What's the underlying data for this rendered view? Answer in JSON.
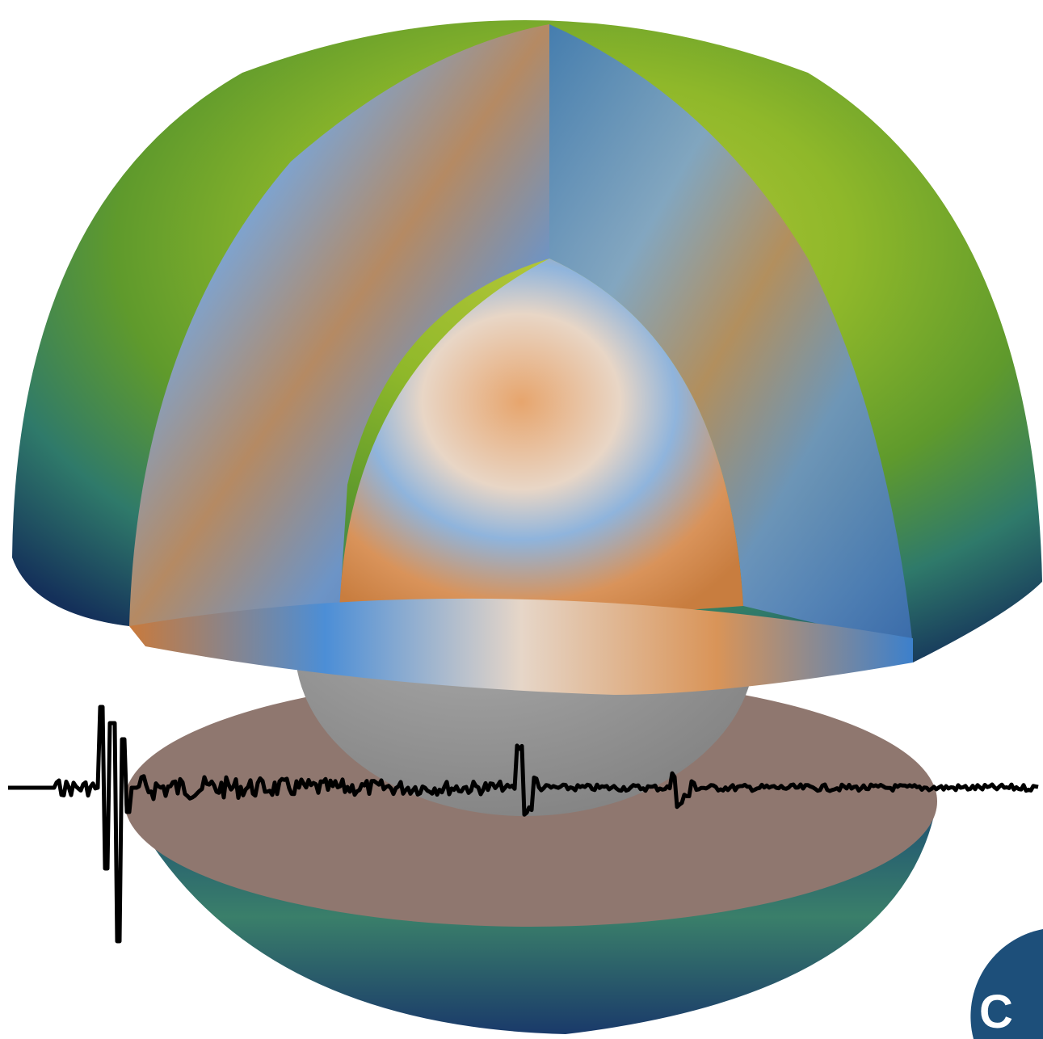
{
  "logo": {
    "text": "C"
  }
}
